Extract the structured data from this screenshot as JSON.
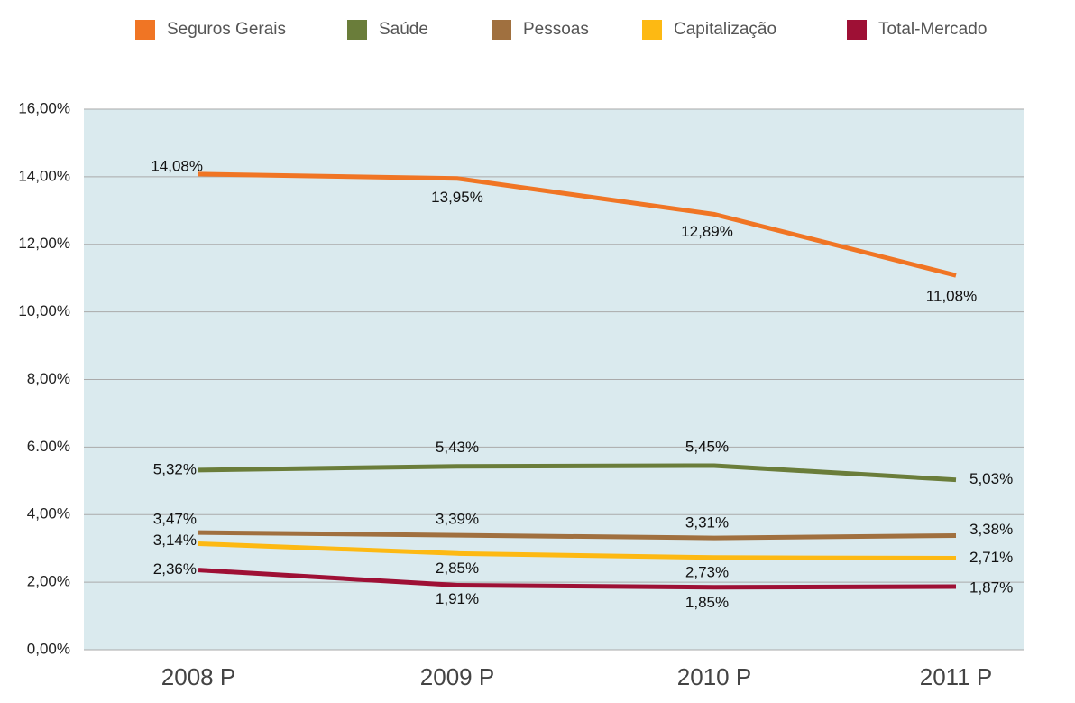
{
  "chart_data": {
    "type": "line",
    "categories": [
      "2008 P",
      "2009 P",
      "2010 P",
      "2011 P"
    ],
    "series": [
      {
        "name": "Seguros Gerais",
        "color": "#f07524",
        "values": [
          14.08,
          13.95,
          12.89,
          11.08
        ],
        "value_labels": [
          "14,08%",
          "13,95%",
          "12,89%",
          "11,08%"
        ]
      },
      {
        "name": "Saúde",
        "color": "#6a7d3a",
        "values": [
          5.32,
          5.43,
          5.45,
          5.03
        ],
        "value_labels": [
          "5,32%",
          "5,43%",
          "5,45%",
          "5,03%"
        ]
      },
      {
        "name": "Pessoas",
        "color": "#a0703f",
        "values": [
          3.47,
          3.39,
          3.31,
          3.38
        ],
        "value_labels": [
          "3,47%",
          "3,39%",
          "3,31%",
          "3,38%"
        ]
      },
      {
        "name": "Capitalização",
        "color": "#fdb913",
        "values": [
          3.14,
          2.85,
          2.73,
          2.71
        ],
        "value_labels": [
          "3,14%",
          "2,85%",
          "2,73%",
          "2,71%"
        ]
      },
      {
        "name": "Total-Mercado",
        "color": "#9e1035",
        "values": [
          2.36,
          1.91,
          1.85,
          1.87
        ],
        "value_labels": [
          "2,36%",
          "1,91%",
          "1,85%",
          "1,87%"
        ]
      }
    ],
    "ylim": [
      0,
      16
    ],
    "yticks": [
      {
        "value": 0,
        "label": "0,00%"
      },
      {
        "value": 2,
        "label": "2,00%"
      },
      {
        "value": 4,
        "label": "4,00%"
      },
      {
        "value": 6,
        "label": "6.00%"
      },
      {
        "value": 8,
        "label": "8,00%"
      },
      {
        "value": 10,
        "label": "10,00%"
      },
      {
        "value": 12,
        "label": "12,00%"
      },
      {
        "value": 14,
        "label": "14,00%"
      },
      {
        "value": 16,
        "label": "16,00%"
      }
    ],
    "grid": true,
    "legend": "top"
  }
}
